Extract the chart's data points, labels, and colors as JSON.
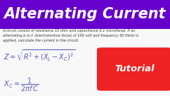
{
  "bg_color": "#f0f0f0",
  "title": "Alternating Current",
  "title_color": "#ffffff",
  "title_bg": "#6600cc",
  "body_text": "A circuit consist of resistance 10 ohm and capacitance 0.1 microfarad. If an\nalternating e.m.f. (electromotive force) of 100 volt and frequency 50 Hertz is\napplied, calculate the current in the circuit.",
  "body_color": "#333333",
  "formula1": "$Z = \\sqrt{R^2 + (X_L - X_C)^2}$",
  "formula2": "$X_C = \\dfrac{1}{2\\pi f\\, C}$",
  "formula_color": "#5555cc",
  "tutorial_bg": "#ee2222",
  "tutorial_text": "Tutorial",
  "tutorial_text_color": "#ffffff",
  "title_fontsize": 15,
  "body_fontsize": 3.6,
  "formula_fontsize": 7.0,
  "tutorial_fontsize": 9.5
}
